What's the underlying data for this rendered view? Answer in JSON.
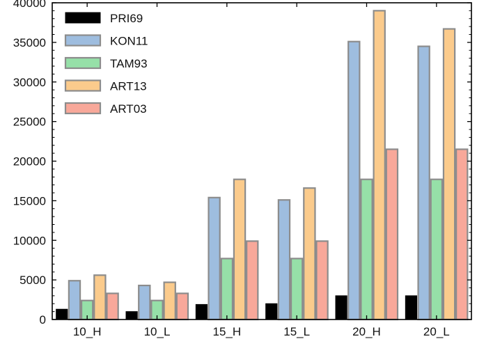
{
  "chart_data": {
    "type": "bar",
    "title": "",
    "xlabel": "",
    "ylabel": "",
    "categories": [
      "10_H",
      "10_L",
      "15_H",
      "15_L",
      "20_H",
      "20_L"
    ],
    "ylim": [
      0,
      40000
    ],
    "yticks": [
      0,
      5000,
      10000,
      15000,
      20000,
      25000,
      30000,
      35000,
      40000
    ],
    "grid": false,
    "legend_position": "top-left",
    "series": [
      {
        "name": "PRI69",
        "color": "#000000",
        "values": [
          1300,
          1000,
          1900,
          2000,
          3000,
          3000
        ]
      },
      {
        "name": "KON11",
        "color": "#9ebddf",
        "values": [
          4900,
          4300,
          15400,
          15100,
          35100,
          34500
        ]
      },
      {
        "name": "TAM93",
        "color": "#96e0a8",
        "values": [
          2400,
          2400,
          7700,
          7700,
          17700,
          17700
        ]
      },
      {
        "name": "ART13",
        "color": "#fbcb8c",
        "values": [
          5600,
          4700,
          17700,
          16600,
          39000,
          36700
        ]
      },
      {
        "name": "ART03",
        "color": "#f8a89a",
        "values": [
          3300,
          3300,
          9900,
          9900,
          21500,
          21500
        ]
      }
    ]
  }
}
